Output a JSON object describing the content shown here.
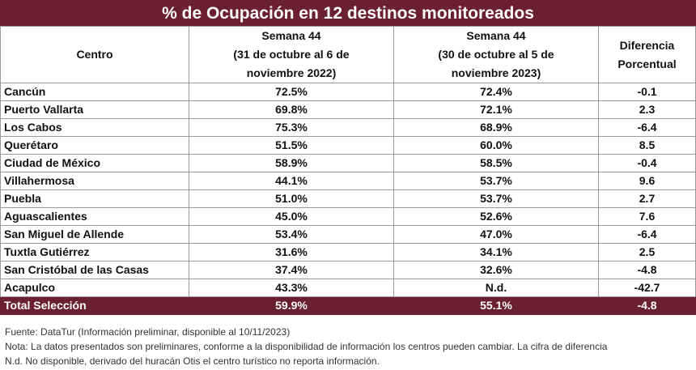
{
  "title": "% de Ocupación en 12 destinos monitoreados",
  "headers": {
    "centro": "Centro",
    "semana_2022_line1": "Semana 44",
    "semana_2022_line2": "(31 de octubre al 6 de",
    "semana_2022_line3": "noviembre 2022)",
    "semana_2023_line1": "Semana 44",
    "semana_2023_line2": "(30 de octubre al 5 de",
    "semana_2023_line3": "noviembre 2023)",
    "diferencia_line1": "Diferencia",
    "diferencia_line2": "Porcentual"
  },
  "rows": [
    {
      "centro": "Cancún",
      "v2022": "72.5%",
      "v2023": "72.4%",
      "dif": "-0.1"
    },
    {
      "centro": "Puerto Vallarta",
      "v2022": "69.8%",
      "v2023": "72.1%",
      "dif": "2.3"
    },
    {
      "centro": "Los Cabos",
      "v2022": "75.3%",
      "v2023": "68.9%",
      "dif": "-6.4"
    },
    {
      "centro": "Querétaro",
      "v2022": "51.5%",
      "v2023": "60.0%",
      "dif": "8.5"
    },
    {
      "centro": "Ciudad de México",
      "v2022": "58.9%",
      "v2023": "58.5%",
      "dif": "-0.4"
    },
    {
      "centro": "Villahermosa",
      "v2022": "44.1%",
      "v2023": "53.7%",
      "dif": "9.6"
    },
    {
      "centro": "Puebla",
      "v2022": "51.0%",
      "v2023": "53.7%",
      "dif": "2.7"
    },
    {
      "centro": "Aguascalientes",
      "v2022": "45.0%",
      "v2023": "52.6%",
      "dif": "7.6"
    },
    {
      "centro": "San Miguel de Allende",
      "v2022": "53.4%",
      "v2023": "47.0%",
      "dif": "-6.4"
    },
    {
      "centro": "Tuxtla Gutiérrez",
      "v2022": "31.6%",
      "v2023": "34.1%",
      "dif": "2.5"
    },
    {
      "centro": "San Cristóbal de las Casas",
      "v2022": "37.4%",
      "v2023": "32.6%",
      "dif": "-4.8"
    },
    {
      "centro": "Acapulco",
      "v2022": "43.3%",
      "v2023": "N.d.",
      "dif": "-42.7"
    }
  ],
  "total": {
    "centro": "Total Selección",
    "v2022": "59.9%",
    "v2023": "55.1%",
    "dif": "-4.8"
  },
  "footer": {
    "fuente": "Fuente: DataTur (Información preliminar, disponible al 10/11/2023)",
    "nota_line1": "Nota: La datos presentados son preliminares, conforme a la disponibilidad de información los centros pueden cambiar. La cifra de diferencia",
    "nota_line2": "N.d. No disponible, derivado del huracán Otis el centro turístico no reporta información."
  },
  "colors": {
    "header_band": "#6b1f33",
    "header_text": "#ffffff"
  }
}
